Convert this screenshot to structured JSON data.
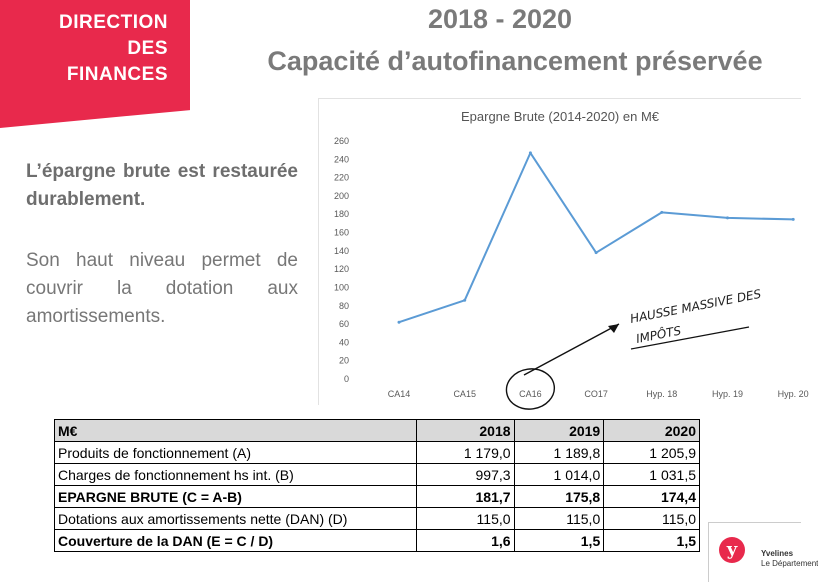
{
  "header": {
    "badge_lines": [
      "DIRECTION",
      "DES",
      "FINANCES"
    ],
    "badge_color": "#e8294c",
    "title_line1": "2018 - 2020",
    "title_line2": "Capacité d’autofinancement préservée"
  },
  "text": {
    "para1": "L’épargne brute est restaurée durablement.",
    "para2": "Son haut niveau permet de couvrir la dotation aux amortissements."
  },
  "chart_data": {
    "type": "line",
    "title": "Epargne Brute (2014-2020) en M€",
    "categories": [
      "CA14",
      "CA15",
      "CA16",
      "CO17",
      "Hyp. 18",
      "Hyp. 19",
      "Hyp. 20"
    ],
    "series": [
      {
        "values": [
          62,
          86,
          247,
          138,
          182,
          176,
          174.4
        ],
        "color": "#5b9bd5"
      }
    ],
    "ylim": [
      0,
      260
    ],
    "yticks": [
      0,
      20,
      40,
      60,
      80,
      100,
      120,
      140,
      160,
      180,
      200,
      220,
      240,
      260
    ],
    "grid": false,
    "annotation": {
      "text_line1": "HAUSSE MASSIVE DES",
      "text_line2": "IMPÔTS",
      "circled_category": "CA16"
    }
  },
  "table": {
    "headers": [
      "M€",
      "2018",
      "2019",
      "2020"
    ],
    "rows": [
      {
        "label": "Produits de fonctionnement (A)",
        "values": [
          "1 179,0",
          "1 189,8",
          "1 205,9"
        ],
        "bold": false
      },
      {
        "label": "Charges de fonctionnement hs int. (B)",
        "values": [
          "997,3",
          "1 014,0",
          "1 031,5"
        ],
        "bold": false
      },
      {
        "label": "EPARGNE BRUTE (C = A-B)",
        "values": [
          "181,7",
          "175,8",
          "174,4"
        ],
        "bold": true
      },
      {
        "label": "Dotations aux amortissements nette (DAN) (D)",
        "values": [
          "115,0",
          "115,0",
          "115,0"
        ],
        "bold": false
      },
      {
        "label": "Couverture de la DAN (E = C / D)",
        "values": [
          "1,6",
          "1,5",
          "1,5"
        ],
        "bold": true
      }
    ]
  },
  "logo": {
    "mark": "y",
    "line1": "Yvelines",
    "line2": "Le Département"
  }
}
